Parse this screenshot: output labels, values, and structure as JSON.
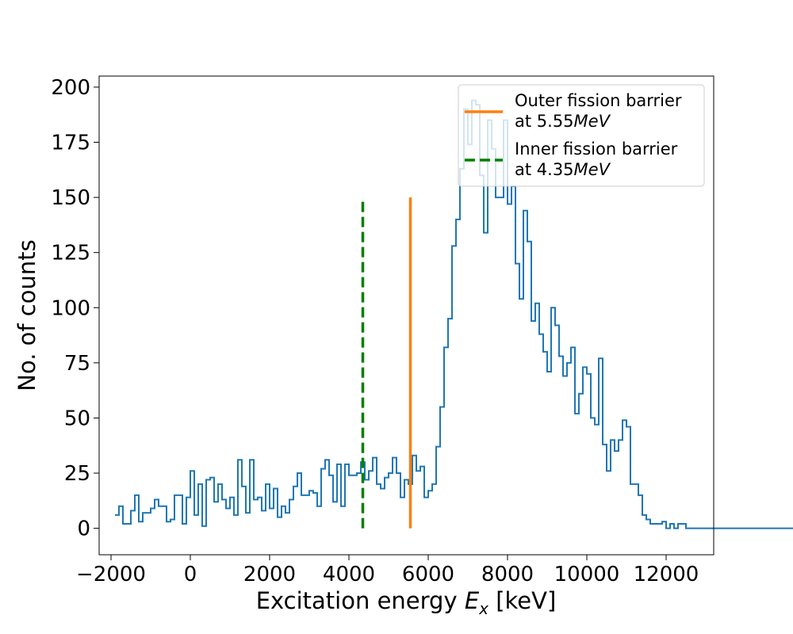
{
  "chart_data": {
    "type": "histogram",
    "xlabel_prefix": "Excitation energy ",
    "xlabel_symbol": "E",
    "xlabel_subscript": "x",
    "xlabel_suffix": " [keV]",
    "ylabel": "No. of counts",
    "xlim": [
      -2300,
      13200
    ],
    "ylim": [
      -12,
      205
    ],
    "x_ticks": [
      -2000,
      0,
      2000,
      4000,
      6000,
      8000,
      10000,
      12000
    ],
    "x_tick_labels": [
      "−2000",
      "0",
      "2000",
      "4000",
      "6000",
      "8000",
      "10000",
      "12000"
    ],
    "y_ticks": [
      0,
      25,
      50,
      75,
      100,
      125,
      150,
      175,
      200
    ],
    "y_tick_labels": [
      "0",
      "25",
      "50",
      "75",
      "100",
      "125",
      "150",
      "175",
      "200"
    ],
    "grid": false,
    "legend_position": "top-right",
    "series": [
      {
        "kind": "step",
        "color": "#1f77b4",
        "bin_start": -1900,
        "bin_width": 100,
        "values": [
          6,
          10,
          2,
          2,
          8,
          15,
          3,
          7,
          7,
          9,
          13,
          10,
          10,
          3,
          4,
          15,
          15,
          2,
          14,
          26,
          6,
          20,
          1,
          22,
          23,
          12,
          20,
          13,
          9,
          14,
          6,
          31,
          19,
          7,
          31,
          13,
          14,
          8,
          20,
          9,
          18,
          5,
          10,
          7,
          13,
          19,
          25,
          15,
          15,
          17,
          16,
          10,
          27,
          31,
          24,
          12,
          29,
          10,
          29,
          24,
          24,
          25,
          30,
          22,
          26,
          32,
          20,
          18,
          23,
          25,
          32,
          25,
          14,
          22,
          20,
          33,
          26,
          28,
          14,
          17,
          20,
          37,
          55,
          82,
          95,
          128,
          140,
          163,
          190,
          174,
          194,
          192,
          160,
          134,
          185,
          172,
          150,
          150,
          185,
          147,
          155,
          120,
          104,
          144,
          130,
          94,
          102,
          88,
          80,
          71,
          100,
          92,
          78,
          69,
          75,
          82,
          52,
          61,
          73,
          70,
          50,
          47,
          77,
          38,
          26,
          40,
          35,
          40,
          49,
          46,
          20,
          20,
          15,
          6,
          4,
          2,
          2,
          2,
          3,
          0,
          2,
          0,
          2,
          2,
          0,
          0,
          0,
          0,
          0,
          0,
          0,
          0,
          0,
          0,
          0,
          0,
          0,
          0,
          0,
          0,
          0,
          0,
          0,
          0,
          0,
          0,
          0,
          0,
          0,
          0,
          0,
          0
        ]
      },
      {
        "kind": "vline",
        "name": "Outer fission barrier\n at 5.55MeV",
        "x": 5550,
        "y_range": [
          0,
          150
        ],
        "color": "#ff7f0e",
        "style": "solid"
      },
      {
        "kind": "vline",
        "name": "Inner fission barrier\n at 4.35MeV",
        "x": 4350,
        "y_range": [
          0,
          150
        ],
        "color": "#008000",
        "style": "dashed"
      }
    ]
  },
  "legend": {
    "entries": [
      {
        "line1": "Outer fission barrier",
        "line2_prefix": " at 5.55",
        "line2_unit": "MeV",
        "color": "#ff7f0e",
        "style": "solid"
      },
      {
        "line1": "Inner fission barrier",
        "line2_prefix": " at 4.35",
        "line2_unit": "MeV",
        "color": "#008000",
        "style": "dashed"
      }
    ]
  }
}
